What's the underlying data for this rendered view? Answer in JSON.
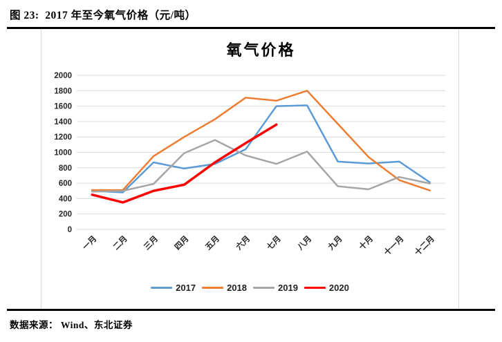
{
  "figure": {
    "caption": "图 23:  2017 年至今氧气价格（元/吨）",
    "source": "数据来源： Wind、东北证券"
  },
  "chart_data": {
    "type": "line",
    "title": "氧气价格",
    "categories": [
      "一月",
      "二月",
      "三月",
      "四月",
      "五月",
      "六月",
      "七月",
      "八月",
      "九月",
      "十月",
      "十一月",
      "十二月"
    ],
    "series": [
      {
        "name": "2017",
        "color": "#5B9BD5",
        "stroke_width": 2.5,
        "values": [
          500,
          480,
          870,
          790,
          850,
          1040,
          1600,
          1610,
          880,
          855,
          880,
          610
        ]
      },
      {
        "name": "2018",
        "color": "#ED7D31",
        "stroke_width": 2.5,
        "values": [
          510,
          510,
          950,
          1200,
          1430,
          1710,
          1670,
          1800,
          1370,
          940,
          640,
          505
        ]
      },
      {
        "name": "2019",
        "color": "#A5A5A5",
        "stroke_width": 2.5,
        "values": [
          490,
          500,
          590,
          990,
          1160,
          960,
          850,
          1010,
          560,
          520,
          680,
          595
        ]
      },
      {
        "name": "2020",
        "color": "#FF0000",
        "stroke_width": 3.5,
        "values": [
          450,
          350,
          500,
          580,
          870,
          1120,
          1360,
          null,
          null,
          null,
          null,
          null
        ]
      }
    ],
    "ylim": [
      0,
      2000
    ],
    "ytick_step": 200,
    "xlabel": "",
    "ylabel": "",
    "grid": true,
    "gridline_color": "#D9D9D9",
    "axis_label_color": "#262626",
    "legend_position": "bottom"
  }
}
